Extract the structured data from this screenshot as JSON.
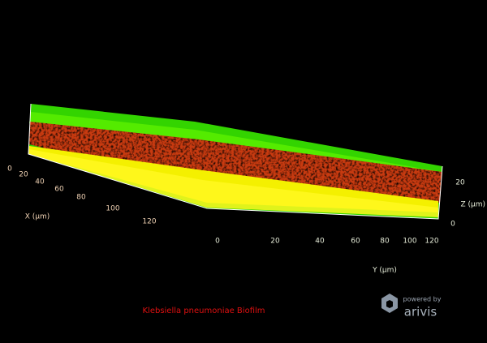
{
  "axes": {
    "x": {
      "label": "X (µm)",
      "ticks": [
        "0",
        "20",
        "40",
        "60",
        "80",
        "100",
        "120"
      ]
    },
    "y": {
      "label": "Y (µm)",
      "ticks": [
        "0",
        "20",
        "40",
        "60",
        "80",
        "100",
        "120"
      ]
    },
    "z": {
      "label": "Z (µm)",
      "ticks": [
        "20",
        "0"
      ]
    }
  },
  "caption": "Klebsiella pneumoniae Biofilm",
  "logo": {
    "tagline": "powered by",
    "name": "arivis"
  }
}
